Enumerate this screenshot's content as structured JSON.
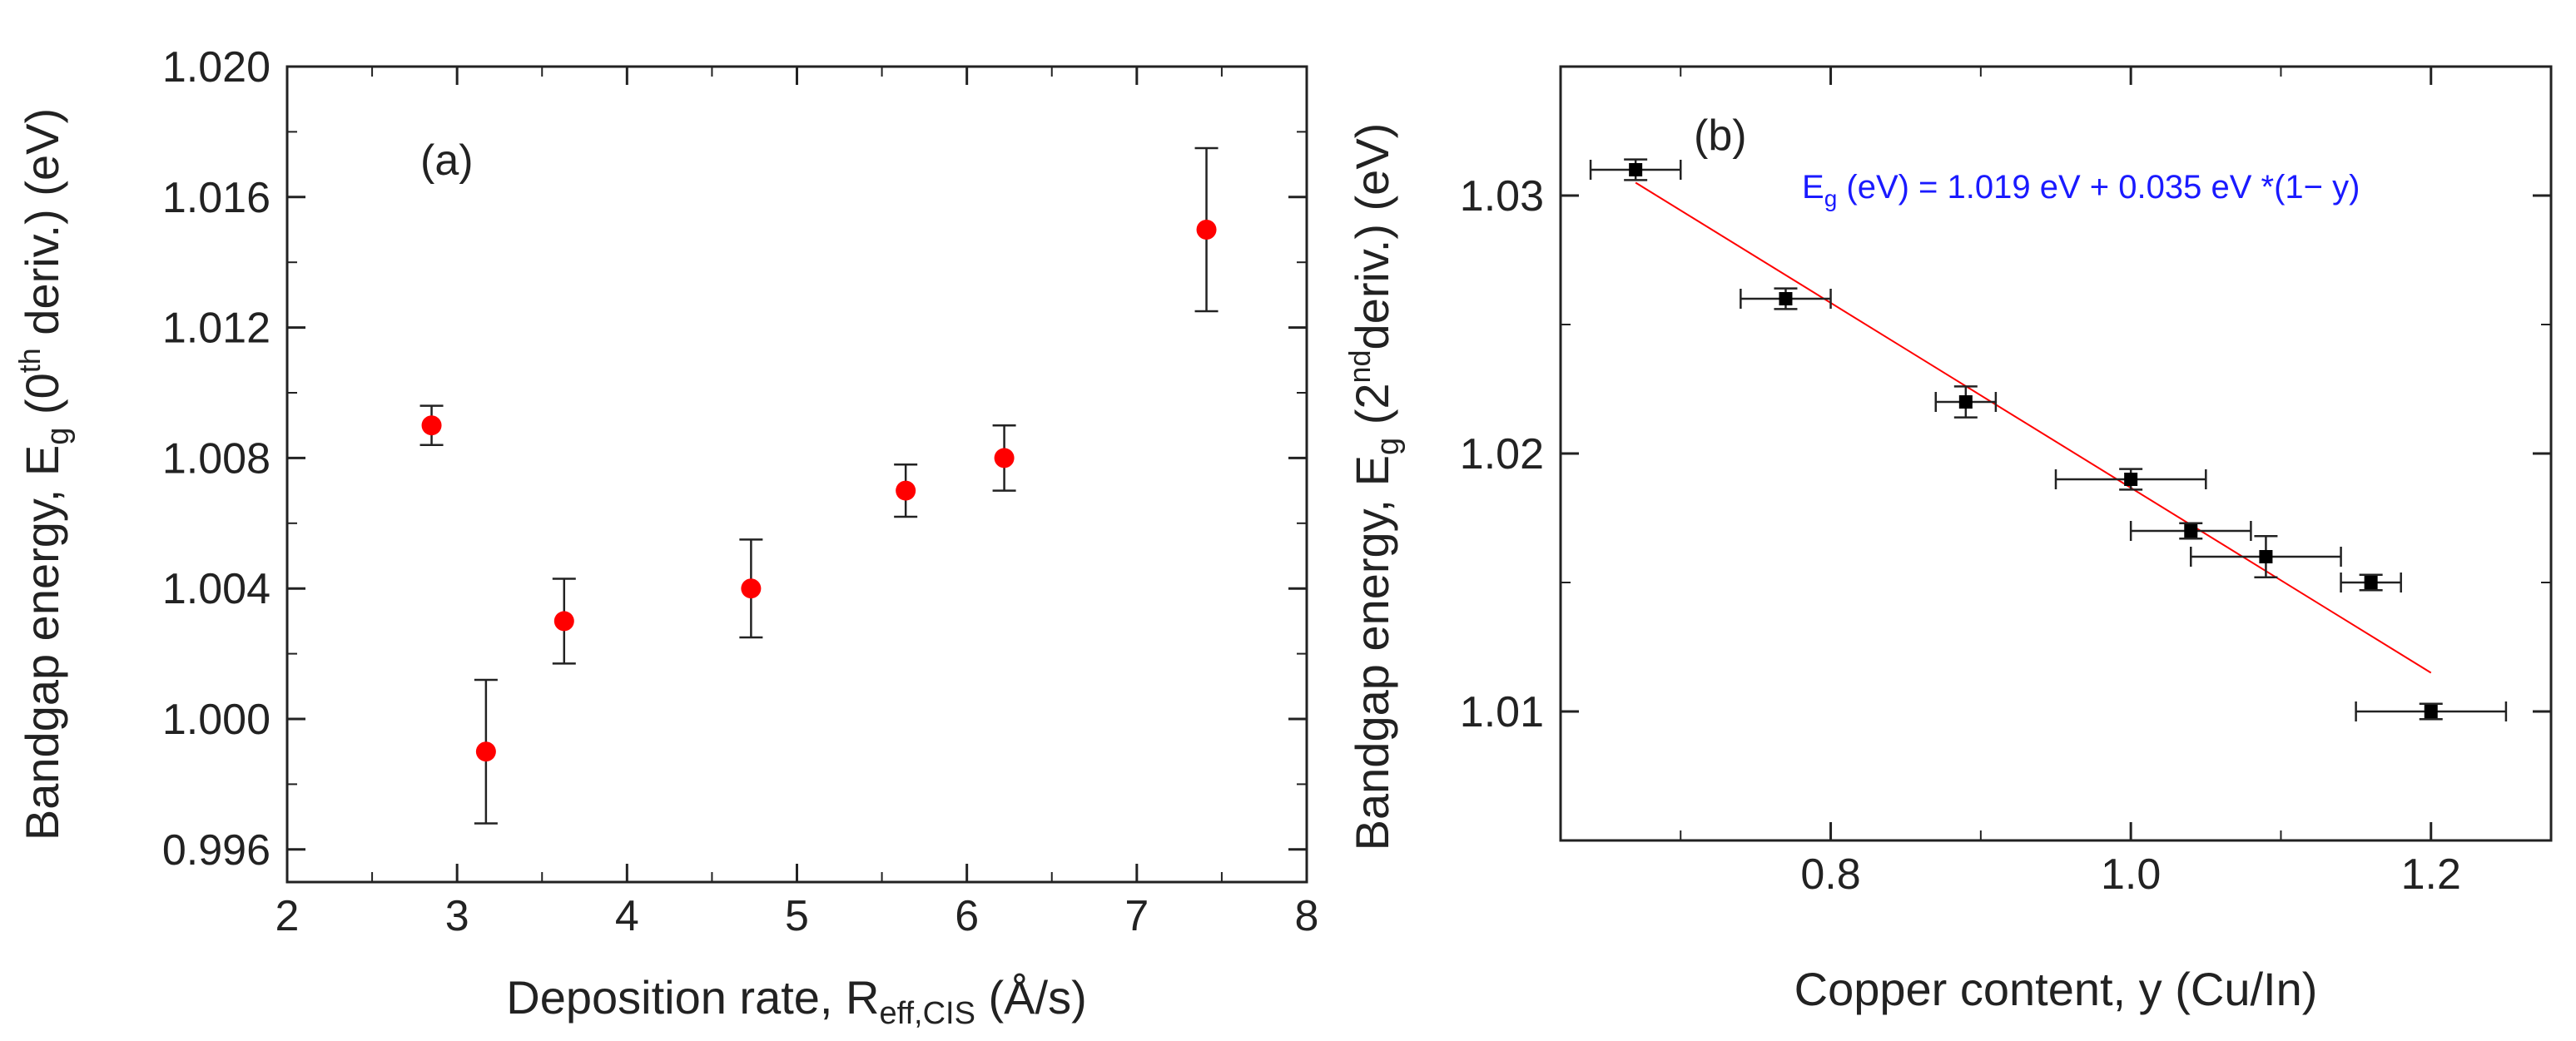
{
  "chart_data": [
    {
      "type": "scatter",
      "panel_label": "(a)",
      "x": [
        2.85,
        3.17,
        3.63,
        4.73,
        5.64,
        6.22,
        7.41
      ],
      "y": [
        1.009,
        0.999,
        1.003,
        1.004,
        1.007,
        1.008,
        1.015
      ],
      "y_err": [
        0.0006,
        0.0022,
        0.0013,
        0.0015,
        0.0008,
        0.001,
        0.0025
      ],
      "marker": "circle",
      "marker_color": "#ff0000",
      "xlim": [
        2,
        8
      ],
      "ylim": [
        0.995,
        1.02
      ],
      "xticks": [
        "2",
        "3",
        "4",
        "5",
        "6",
        "7",
        "8"
      ],
      "yticks": [
        "0.996",
        "1.000",
        "1.004",
        "1.008",
        "1.012",
        "1.016",
        "1.020"
      ],
      "xlabel": {
        "main": "Deposition rate, R",
        "sub": "eff,CIS",
        "tail": " (Å/s)"
      },
      "ylabel": {
        "main": "Bandgap energy, E",
        "sub": "g",
        "mid": " (0",
        "sup": "th",
        "tail": " deriv.) (eV)"
      }
    },
    {
      "type": "scatter",
      "panel_label": "(b)",
      "x": [
        0.67,
        0.77,
        0.89,
        1.0,
        1.04,
        1.09,
        1.16,
        1.2
      ],
      "y": [
        1.031,
        1.026,
        1.022,
        1.019,
        1.017,
        1.016,
        1.015,
        1.01
      ],
      "x_err": [
        0.03,
        0.03,
        0.02,
        0.05,
        0.04,
        0.05,
        0.02,
        0.05
      ],
      "y_err": [
        0.0004,
        0.0004,
        0.0006,
        0.0004,
        0.0003,
        0.0008,
        0.0003,
        0.0003
      ],
      "marker": "square",
      "marker_color": "#000000",
      "fit": {
        "x": [
          0.67,
          1.2
        ],
        "y": [
          1.0305,
          1.0115
        ],
        "color": "#ff0000"
      },
      "equation": {
        "main": "E",
        "sub": "g",
        "tail": " (eV) = 1.019 eV + 0.035 eV *(1− y)"
      },
      "xlim": [
        0.62,
        1.28
      ],
      "ylim": [
        1.005,
        1.035
      ],
      "xticks": [
        "0.8",
        "1.0",
        "1.2"
      ],
      "yticks": [
        "1.01",
        "1.02",
        "1.03"
      ],
      "xlabel": {
        "main": "Copper content, y (Cu/In)"
      },
      "ylabel": {
        "main": "Bandgap energy, E",
        "sub": "g",
        "mid": " (2",
        "sup": "nd",
        "tail": "deriv.) (eV)"
      }
    }
  ]
}
